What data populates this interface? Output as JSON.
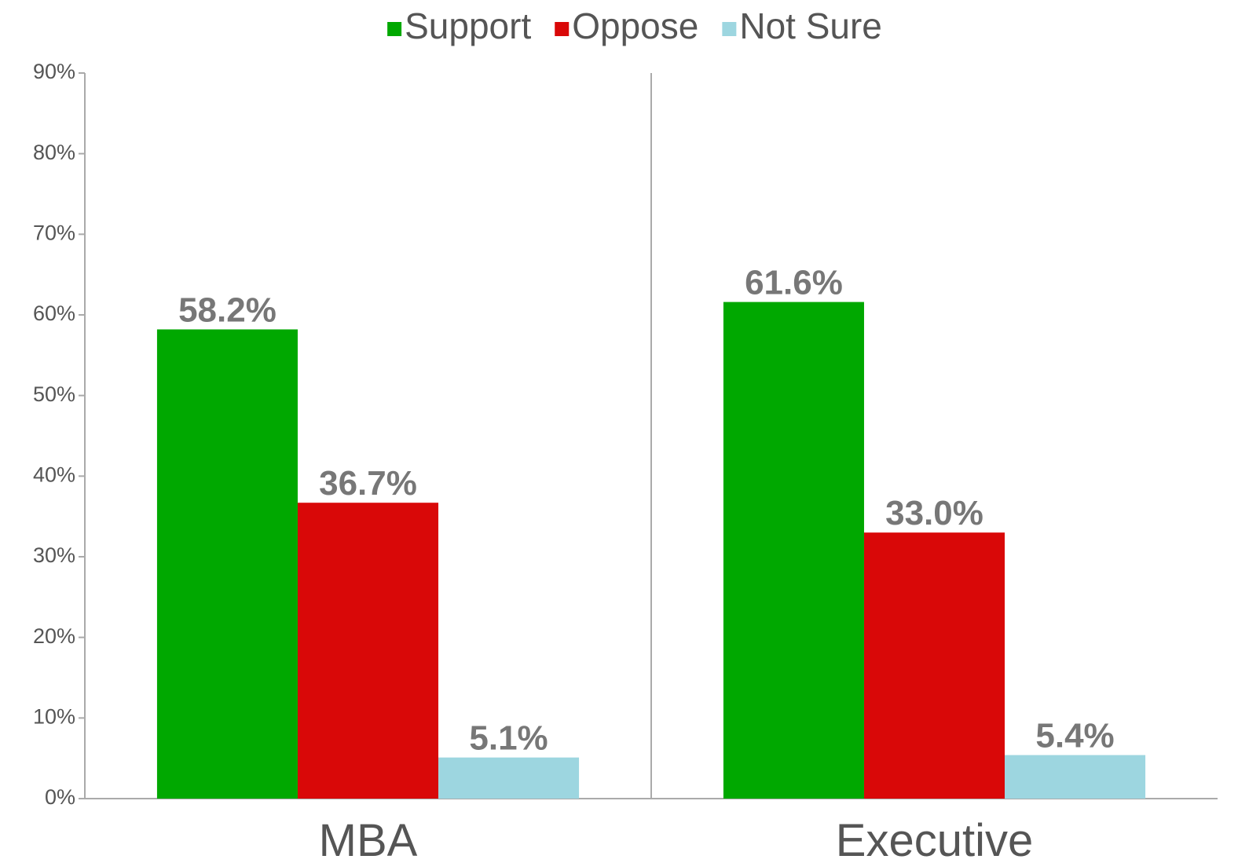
{
  "chart_data": {
    "type": "bar",
    "categories": [
      "MBA",
      "Executive"
    ],
    "series": [
      {
        "name": "Support",
        "color": "#00a800",
        "values": [
          58.2,
          61.6
        ],
        "value_labels": [
          "58.2%",
          "61.6%"
        ]
      },
      {
        "name": "Oppose",
        "color": "#d90808",
        "values": [
          36.7,
          33.0
        ],
        "value_labels": [
          "36.7%",
          "33.0%"
        ]
      },
      {
        "name": "Not Sure",
        "color": "#9dd6e0",
        "values": [
          5.1,
          5.4
        ],
        "value_labels": [
          "5.1%",
          "5.4%"
        ]
      }
    ],
    "ylim": [
      0,
      90
    ],
    "yticks": [
      {
        "value": 0,
        "label": "0%"
      },
      {
        "value": 10,
        "label": "10%"
      },
      {
        "value": 20,
        "label": "20%"
      },
      {
        "value": 30,
        "label": "30%"
      },
      {
        "value": 40,
        "label": "40%"
      },
      {
        "value": 50,
        "label": "50%"
      },
      {
        "value": 60,
        "label": "60%"
      },
      {
        "value": 70,
        "label": "70%"
      },
      {
        "value": 80,
        "label": "80%"
      },
      {
        "value": 90,
        "label": "90%"
      }
    ],
    "legend": "top",
    "grid": false
  }
}
